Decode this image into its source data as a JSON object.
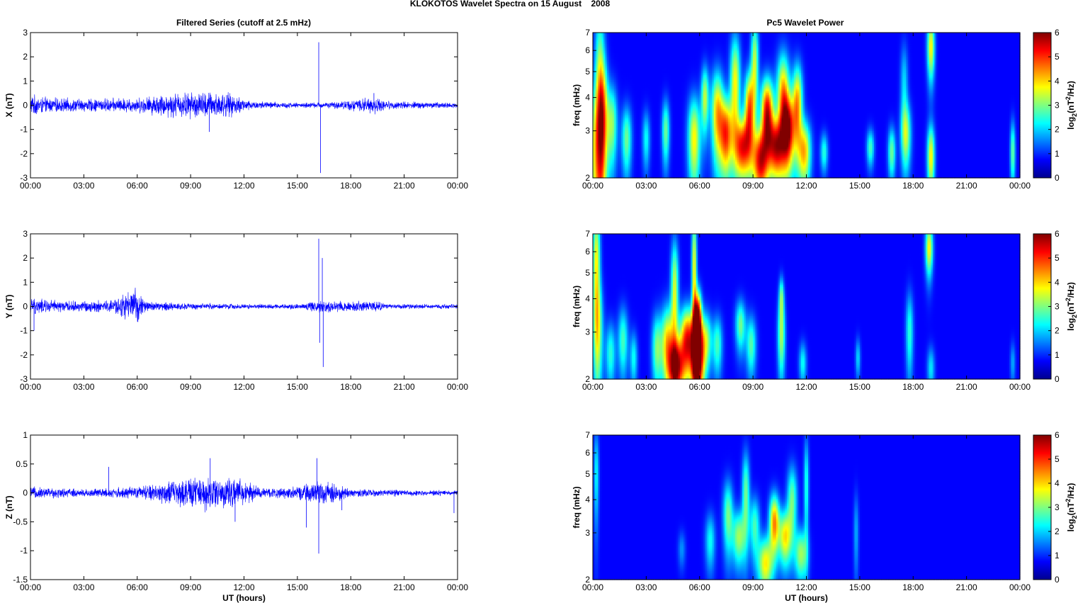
{
  "figure": {
    "title": "KLOKOTOS Wavelet Spectra on 15 August    2008",
    "left_title": "Filtered Series (cutoff at 2.5 mHz)",
    "right_title": "Pc5 Wavelet Power"
  },
  "chart_data": [
    {
      "type": "line",
      "panel": "series-x",
      "ylabel": "X (nT)",
      "xlabel": "",
      "ylim": [
        -3,
        3
      ],
      "yticks": [
        -3,
        -2,
        -1,
        0,
        1,
        2,
        3
      ],
      "xticks": [
        "00:00",
        "03:00",
        "06:00",
        "09:00",
        "12:00",
        "15:00",
        "18:00",
        "21:00",
        "00:00"
      ],
      "xlim_hours": [
        0,
        24
      ],
      "series": [
        {
          "color": "#0000ff",
          "envelope": [
            [
              0,
              0.5
            ],
            [
              1,
              0.35
            ],
            [
              3,
              0.3
            ],
            [
              6,
              0.35
            ],
            [
              8,
              0.6
            ],
            [
              10,
              0.65
            ],
            [
              11,
              0.6
            ],
            [
              12.5,
              0.2
            ],
            [
              15,
              0.12
            ],
            [
              17,
              0.15
            ],
            [
              19.3,
              0.4
            ],
            [
              20,
              0.2
            ],
            [
              24,
              0.12
            ]
          ],
          "spikes": [
            [
              10.05,
              -1.1
            ],
            [
              16.2,
              2.6
            ],
            [
              16.3,
              -2.8
            ],
            [
              19.3,
              0.5
            ]
          ]
        }
      ]
    },
    {
      "type": "line",
      "panel": "series-y",
      "ylabel": "Y (nT)",
      "xlabel": "",
      "ylim": [
        -3,
        3
      ],
      "yticks": [
        -3,
        -2,
        -1,
        0,
        1,
        2,
        3
      ],
      "xticks": [
        "00:00",
        "03:00",
        "06:00",
        "09:00",
        "12:00",
        "15:00",
        "18:00",
        "21:00",
        "00:00"
      ],
      "xlim_hours": [
        0,
        24
      ],
      "series": [
        {
          "color": "#0000ff",
          "envelope": [
            [
              0,
              0.4
            ],
            [
              2,
              0.25
            ],
            [
              4.5,
              0.3
            ],
            [
              5.9,
              0.85
            ],
            [
              6.5,
              0.25
            ],
            [
              9,
              0.15
            ],
            [
              12,
              0.12
            ],
            [
              15,
              0.12
            ],
            [
              16.2,
              0.3
            ],
            [
              19.5,
              0.25
            ],
            [
              20,
              0.12
            ],
            [
              24,
              0.1
            ]
          ],
          "spikes": [
            [
              0.2,
              -1.0
            ],
            [
              16.2,
              2.8
            ],
            [
              16.25,
              -1.5
            ],
            [
              16.4,
              2.0
            ],
            [
              16.45,
              -2.5
            ]
          ]
        }
      ]
    },
    {
      "type": "line",
      "panel": "series-z",
      "ylabel": "Z (nT)",
      "xlabel": "UT (hours)",
      "ylim": [
        -1.5,
        1
      ],
      "yticks": [
        -1.5,
        -1,
        -0.5,
        0,
        0.5,
        1
      ],
      "xticks": [
        "00:00",
        "03:00",
        "06:00",
        "09:00",
        "12:00",
        "15:00",
        "18:00",
        "21:00",
        "00:00"
      ],
      "xlim_hours": [
        0,
        24
      ],
      "series": [
        {
          "color": "#0000ff",
          "envelope": [
            [
              0,
              0.12
            ],
            [
              3,
              0.08
            ],
            [
              6,
              0.12
            ],
            [
              8,
              0.25
            ],
            [
              10,
              0.35
            ],
            [
              12,
              0.25
            ],
            [
              13,
              0.1
            ],
            [
              15,
              0.12
            ],
            [
              16.5,
              0.25
            ],
            [
              18,
              0.08
            ],
            [
              24,
              0.05
            ]
          ],
          "spikes": [
            [
              4.4,
              0.45
            ],
            [
              10.1,
              0.6
            ],
            [
              11.5,
              -0.5
            ],
            [
              15.5,
              -0.6
            ],
            [
              16.1,
              0.6
            ],
            [
              16.2,
              -1.05
            ],
            [
              17.5,
              -0.3
            ],
            [
              23.8,
              -0.35
            ]
          ]
        }
      ]
    },
    {
      "type": "heatmap",
      "panel": "wavelet-x",
      "ylabel": "freq (mHz)",
      "xlabel": "",
      "yscale": "log",
      "ylim": [
        2,
        7
      ],
      "yticks": [
        2,
        3,
        4,
        5,
        6,
        7
      ],
      "xticks": [
        "00:00",
        "03:00",
        "06:00",
        "09:00",
        "12:00",
        "15:00",
        "18:00",
        "21:00",
        "00:00"
      ],
      "colorbar": {
        "label": "log2(nT2/Hz)",
        "range": [
          0,
          6
        ],
        "ticks": [
          0,
          1,
          2,
          3,
          4,
          5,
          6
        ],
        "colormap": "jet"
      },
      "blobs": [
        [
          0.2,
          2.5,
          3.0,
          0.4,
          1.2,
          0.45
        ],
        [
          0.4,
          4.5,
          3.0,
          0.2,
          2.5,
          0.1
        ],
        [
          0.6,
          3.5,
          2.5,
          0.2,
          1.2,
          0.15
        ],
        [
          1.1,
          3.2,
          2.5,
          0.2,
          0.8,
          0.25
        ],
        [
          1.9,
          2.8,
          2.5,
          0.2,
          0.6,
          0.4
        ],
        [
          3.0,
          2.8,
          1.8,
          0.15,
          0.5,
          0.3
        ],
        [
          4.1,
          3.0,
          2.5,
          0.15,
          0.6,
          0.3
        ],
        [
          5.7,
          2.8,
          3.5,
          0.25,
          0.8,
          0.6
        ],
        [
          6.3,
          4.0,
          3.0,
          0.15,
          0.8,
          0.3
        ],
        [
          7.0,
          3.5,
          3.8,
          0.25,
          1.0,
          0.5
        ],
        [
          7.5,
          2.9,
          4.5,
          0.25,
          0.7,
          0.5
        ],
        [
          8.0,
          4.5,
          3.5,
          0.2,
          1.5,
          0.2
        ],
        [
          8.4,
          2.6,
          4.8,
          0.3,
          0.5,
          0.5
        ],
        [
          8.8,
          3.6,
          4.5,
          0.2,
          0.9,
          0.3
        ],
        [
          9.1,
          5.5,
          3.0,
          0.15,
          1.5,
          0.15
        ],
        [
          9.4,
          2.3,
          5.0,
          0.3,
          0.5,
          0.3
        ],
        [
          9.8,
          3.5,
          5.5,
          0.25,
          0.8,
          0.5
        ],
        [
          10.3,
          2.6,
          4.8,
          0.3,
          0.5,
          0.45
        ],
        [
          10.7,
          4.0,
          4.2,
          0.25,
          1.2,
          0.3
        ],
        [
          11.0,
          3.0,
          4.8,
          0.25,
          0.7,
          0.45
        ],
        [
          11.5,
          3.8,
          4.0,
          0.2,
          1.0,
          0.3
        ],
        [
          11.9,
          2.5,
          3.8,
          0.25,
          0.5,
          0.4
        ],
        [
          13.0,
          2.5,
          2.0,
          0.15,
          0.3,
          0.3
        ],
        [
          15.6,
          2.6,
          2.2,
          0.15,
          0.3,
          0.3
        ],
        [
          16.8,
          2.5,
          2.5,
          0.15,
          0.4,
          0.35
        ],
        [
          17.6,
          2.9,
          2.8,
          0.2,
          0.6,
          0.5
        ],
        [
          17.5,
          4.5,
          1.5,
          0.15,
          1.2,
          0.1
        ],
        [
          19.0,
          2.4,
          3.5,
          0.15,
          0.5,
          0.3
        ],
        [
          19.0,
          6.2,
          3.5,
          0.15,
          1.2,
          0.2
        ],
        [
          23.6,
          2.5,
          2.5,
          0.1,
          0.5,
          0.35
        ]
      ]
    },
    {
      "type": "heatmap",
      "panel": "wavelet-y",
      "ylabel": "freq (mHz)",
      "xlabel": "",
      "yscale": "log",
      "ylim": [
        2,
        7
      ],
      "yticks": [
        2,
        3,
        4,
        5,
        6,
        7
      ],
      "xticks": [
        "00:00",
        "03:00",
        "06:00",
        "09:00",
        "12:00",
        "15:00",
        "18:00",
        "21:00",
        "00:00"
      ],
      "colorbar": {
        "label": "log2(nT2/Hz)",
        "range": [
          0,
          6
        ],
        "ticks": [
          0,
          1,
          2,
          3,
          4,
          5,
          6
        ],
        "colormap": "jet"
      },
      "blobs": [
        [
          0.2,
          5.5,
          3.5,
          0.15,
          2.0,
          0.4
        ],
        [
          0.3,
          3.0,
          2.5,
          0.2,
          1.0,
          0.3
        ],
        [
          1.0,
          2.5,
          2.0,
          0.2,
          0.5,
          0.35
        ],
        [
          1.7,
          2.8,
          2.2,
          0.2,
          0.6,
          0.4
        ],
        [
          2.3,
          2.4,
          1.8,
          0.15,
          0.4,
          0.3
        ],
        [
          3.6,
          2.6,
          2.5,
          0.2,
          0.6,
          0.4
        ],
        [
          4.2,
          2.7,
          3.8,
          0.25,
          0.7,
          0.45
        ],
        [
          4.6,
          4.3,
          3.2,
          0.15,
          1.5,
          0.15
        ],
        [
          4.7,
          2.2,
          5.0,
          0.3,
          0.4,
          0.45
        ],
        [
          5.3,
          2.8,
          5.0,
          0.3,
          0.6,
          0.45
        ],
        [
          5.9,
          2.4,
          6.5,
          0.25,
          0.6,
          0.5
        ],
        [
          5.9,
          3.4,
          5.5,
          0.15,
          0.6,
          0.3
        ],
        [
          5.7,
          5.2,
          3.5,
          0.1,
          2.0,
          0.15
        ],
        [
          6.4,
          2.8,
          2.5,
          0.2,
          0.5,
          0.35
        ],
        [
          7.0,
          2.7,
          2.2,
          0.2,
          0.5,
          0.4
        ],
        [
          8.3,
          3.2,
          2.5,
          0.2,
          0.5,
          0.4
        ],
        [
          8.9,
          2.7,
          2.3,
          0.2,
          0.5,
          0.4
        ],
        [
          10.6,
          2.9,
          2.8,
          0.15,
          0.7,
          0.5
        ],
        [
          10.6,
          4.1,
          2.2,
          0.1,
          0.5,
          0.2
        ],
        [
          11.8,
          2.3,
          1.8,
          0.15,
          0.3,
          0.3
        ],
        [
          14.9,
          2.4,
          1.5,
          0.1,
          0.3,
          0.3
        ],
        [
          17.8,
          3.0,
          2.0,
          0.15,
          0.8,
          0.25
        ],
        [
          18.9,
          6.2,
          3.5,
          0.15,
          1.0,
          0.15
        ],
        [
          19.0,
          2.2,
          1.6,
          0.15,
          0.3,
          0.2
        ],
        [
          23.6,
          2.3,
          1.2,
          0.1,
          0.3,
          0.2
        ]
      ]
    },
    {
      "type": "heatmap",
      "panel": "wavelet-z",
      "ylabel": "freq (mHz)",
      "xlabel": "UT (hours)",
      "yscale": "log",
      "ylim": [
        2,
        7
      ],
      "yticks": [
        2,
        3,
        4,
        5,
        6,
        7
      ],
      "xticks": [
        "00:00",
        "03:00",
        "06:00",
        "09:00",
        "12:00",
        "15:00",
        "18:00",
        "21:00",
        "00:00"
      ],
      "colorbar": {
        "label": "log2(nT2/Hz)",
        "range": [
          0,
          6
        ],
        "ticks": [
          0,
          1,
          2,
          3,
          4,
          5,
          6
        ],
        "colormap": "jet"
      },
      "blobs": [
        [
          0.2,
          5.0,
          1.8,
          0.1,
          1.5,
          0.2
        ],
        [
          5.0,
          2.6,
          1.0,
          0.15,
          0.3,
          0.3
        ],
        [
          6.6,
          2.8,
          1.8,
          0.2,
          0.5,
          0.4
        ],
        [
          7.6,
          3.5,
          2.5,
          0.2,
          0.8,
          0.45
        ],
        [
          8.2,
          2.9,
          2.8,
          0.25,
          0.5,
          0.45
        ],
        [
          8.6,
          4.2,
          2.5,
          0.15,
          1.2,
          0.2
        ],
        [
          9.1,
          3.2,
          2.2,
          0.2,
          0.6,
          0.4
        ],
        [
          9.7,
          2.3,
          3.5,
          0.3,
          0.4,
          0.45
        ],
        [
          10.2,
          3.3,
          4.2,
          0.2,
          0.6,
          0.45
        ],
        [
          10.8,
          2.9,
          3.5,
          0.25,
          0.5,
          0.45
        ],
        [
          11.2,
          4.0,
          2.5,
          0.2,
          0.9,
          0.3
        ],
        [
          11.7,
          2.5,
          2.8,
          0.25,
          0.4,
          0.4
        ],
        [
          12.0,
          4.5,
          2.0,
          0.1,
          1.5,
          0.1
        ],
        [
          14.8,
          3.0,
          1.2,
          0.1,
          0.8,
          0.2
        ]
      ]
    }
  ]
}
